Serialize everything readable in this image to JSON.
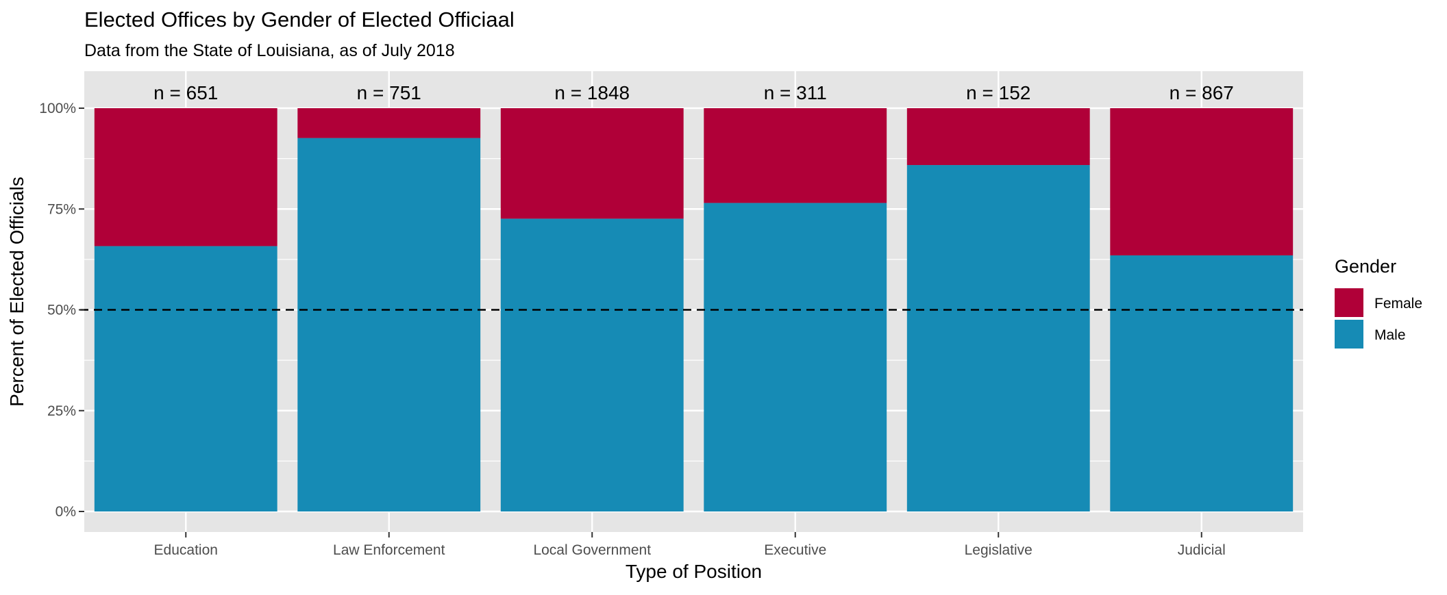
{
  "chart_data": {
    "type": "bar",
    "stacked": true,
    "percent_stacked": true,
    "title": "Elected Offices by Gender of Elected Officiaal",
    "subtitle": "Data from the State of Louisiana, as of July 2018",
    "xlabel": "Type of Position",
    "ylabel": "Percent of Elected Officials",
    "categories": [
      "Education",
      "Law Enforcement",
      "Local Government",
      "Executive",
      "Legislative",
      "Judicial"
    ],
    "count_labels": [
      "n = 651",
      "n = 751",
      "n = 1848",
      "n = 311",
      "n = 152",
      "n = 867"
    ],
    "counts": [
      651,
      751,
      1848,
      311,
      152,
      867
    ],
    "series": [
      {
        "name": "Male",
        "color": "#168BB5",
        "values": [
          0.658,
          0.926,
          0.726,
          0.765,
          0.859,
          0.635
        ]
      },
      {
        "name": "Female",
        "color": "#B00038",
        "values": [
          0.342,
          0.074,
          0.274,
          0.235,
          0.141,
          0.365
        ]
      }
    ],
    "ylim": [
      0,
      1
    ],
    "y_ticks": [
      0,
      0.25,
      0.5,
      0.75,
      1
    ],
    "y_tick_labels": [
      "0%",
      "25%",
      "50%",
      "75%",
      "100%"
    ],
    "reference_line": {
      "value": 0.5,
      "style": "dashed",
      "color": "#000000"
    },
    "legend": {
      "title": "Gender",
      "position": "right",
      "items": [
        {
          "label": "Female",
          "color": "#B00038"
        },
        {
          "label": "Male",
          "color": "#168BB5"
        }
      ]
    },
    "grid": true,
    "panel_background": "#E5E5E5",
    "grid_color": "#FFFFFF"
  }
}
